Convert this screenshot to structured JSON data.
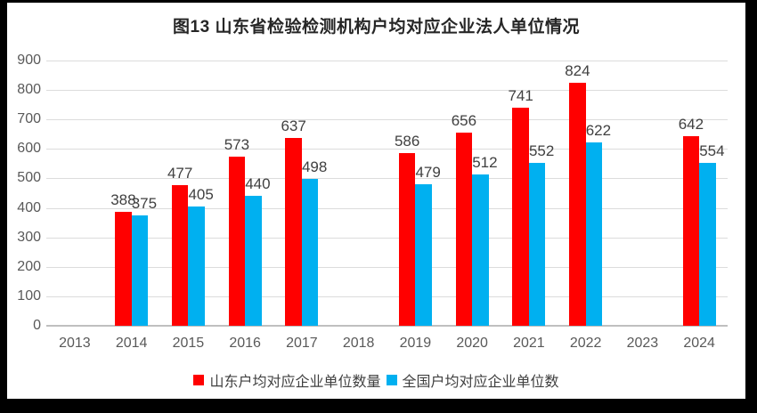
{
  "chart_data": {
    "type": "bar",
    "title": "图13 山东省检验检测机构户均对应企业法人单位情况",
    "categories": [
      "2013",
      "2014",
      "2015",
      "2016",
      "2017",
      "2018",
      "2019",
      "2020",
      "2021",
      "2022",
      "2023",
      "2024"
    ],
    "series": [
      {
        "name": "山东户均对应企业单位数量",
        "color": "#ff0000",
        "values": [
          null,
          388,
          477,
          573,
          637,
          null,
          586,
          656,
          741,
          824,
          null,
          642
        ]
      },
      {
        "name": "全国户均对应企业单位数",
        "color": "#00b0f0",
        "values": [
          null,
          375,
          405,
          440,
          498,
          null,
          479,
          512,
          552,
          622,
          null,
          554
        ]
      }
    ],
    "xlabel": "",
    "ylabel": "",
    "ylim": [
      0,
      900
    ],
    "yticks": [
      0,
      100,
      200,
      300,
      400,
      500,
      600,
      700,
      800,
      900
    ],
    "grid": true,
    "legend_position": "bottom",
    "data_labels": true
  }
}
